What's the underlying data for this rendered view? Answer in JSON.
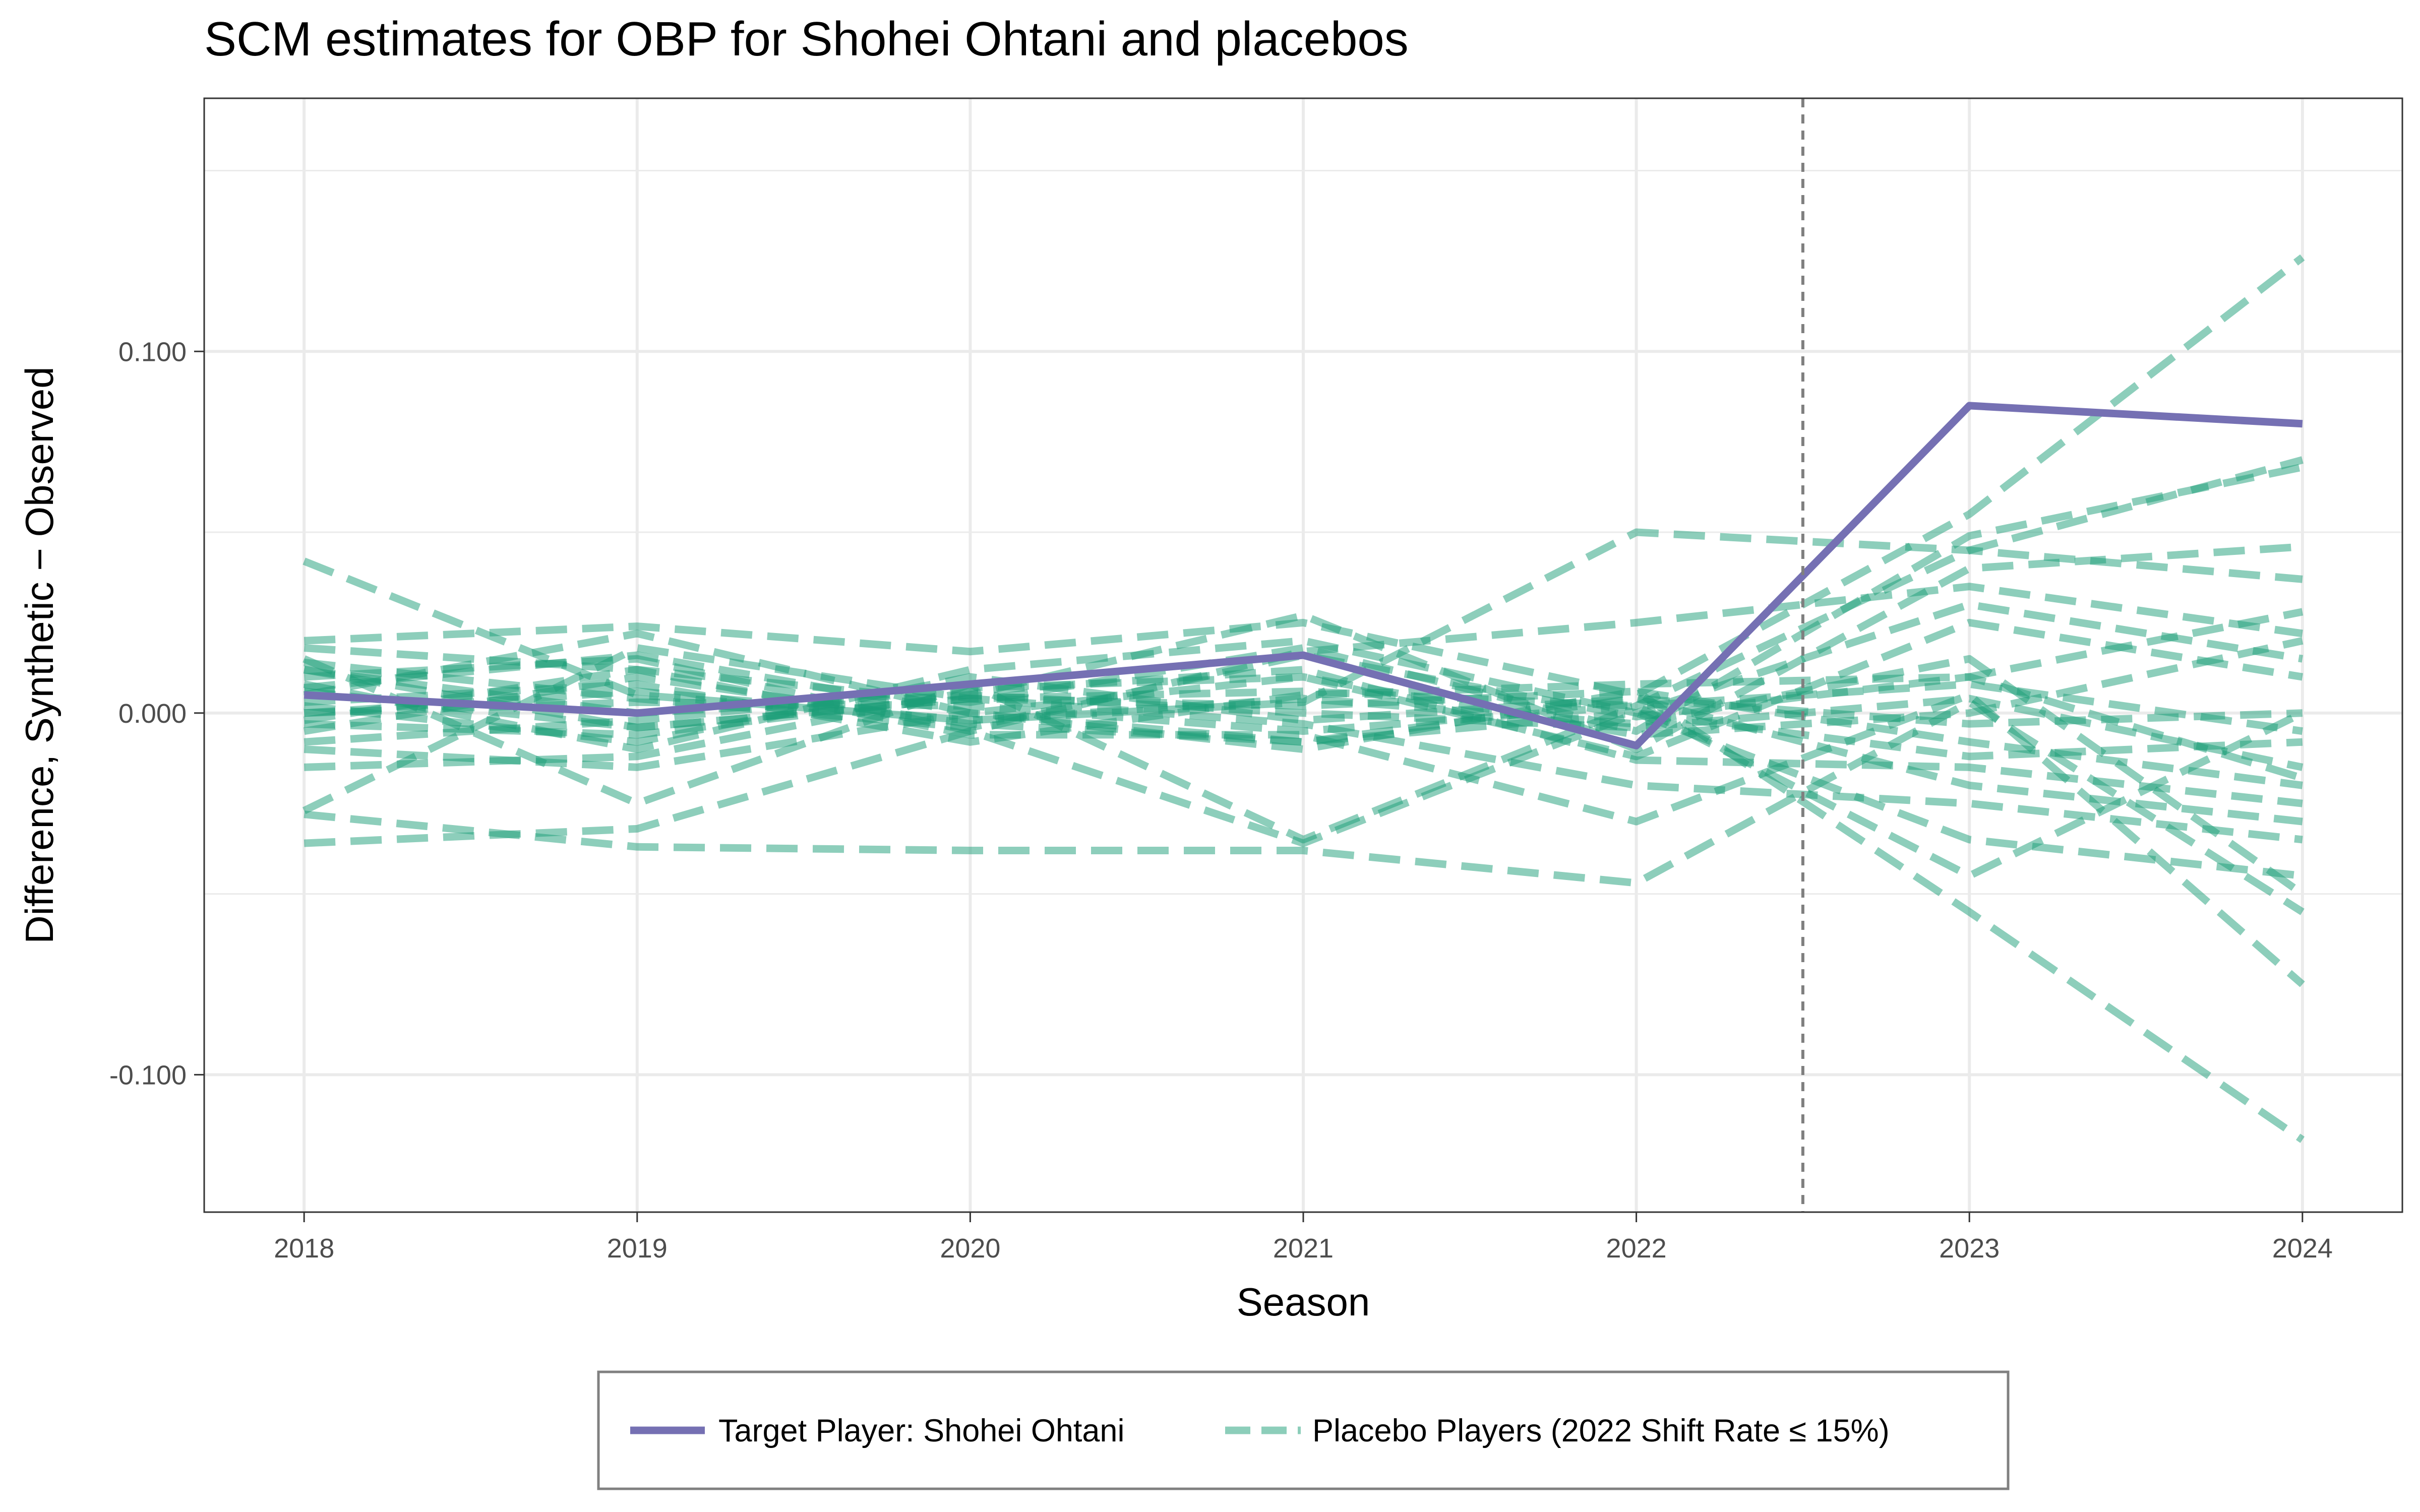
{
  "chart_data": {
    "type": "line",
    "title": "SCM estimates for OBP for Shohei Ohtani and placebos",
    "xlabel": "Season",
    "ylabel": "Difference, Synthetic − Observed",
    "x": [
      2018,
      2019,
      2020,
      2021,
      2022,
      2023,
      2024
    ],
    "x_tick_labels": [
      "2018",
      "2019",
      "2020",
      "2021",
      "2022",
      "2023",
      "2024"
    ],
    "xlim": [
      2017.7,
      2024.3
    ],
    "y_ticks": [
      -0.1,
      0.0,
      0.1
    ],
    "y_tick_labels": [
      "-0.100",
      "0.000",
      "0.100"
    ],
    "ylim": [
      -0.138,
      0.17
    ],
    "grid": true,
    "vline": {
      "x": 2022.5,
      "style": "dashed"
    },
    "legend": {
      "placement": "bottom",
      "entries": [
        {
          "label": "Target Player: Shohei Ohtani",
          "color": "#7570b3",
          "style": "solid"
        },
        {
          "label": "Placebo Players (2022 Shift Rate ≤ 15%)",
          "color": "#1b9e77",
          "style": "dashed"
        }
      ]
    },
    "target_series": {
      "name": "Target Player: Shohei Ohtani",
      "color": "#7570b3",
      "values": [
        0.005,
        0.0,
        0.008,
        0.016,
        -0.009,
        0.085,
        0.08
      ]
    },
    "placebo_color": "#1b9e77",
    "placebo_series": [
      {
        "values": [
          0.042,
          0.005,
          -0.002,
          0.003,
          0.05,
          0.045,
          0.037
        ]
      },
      {
        "values": [
          0.02,
          0.024,
          0.017,
          0.025,
          0.005,
          0.055,
          0.126
        ]
      },
      {
        "values": [
          0.018,
          0.012,
          0.003,
          0.018,
          -0.005,
          0.049,
          0.068
        ]
      },
      {
        "values": [
          0.015,
          -0.025,
          0.008,
          -0.035,
          0.002,
          0.045,
          0.07
        ]
      },
      {
        "values": [
          0.012,
          0.0,
          0.005,
          0.027,
          -0.01,
          0.04,
          0.046
        ]
      },
      {
        "values": [
          0.01,
          0.015,
          -0.005,
          0.017,
          0.025,
          0.035,
          0.022
        ]
      },
      {
        "values": [
          0.008,
          -0.01,
          0.012,
          0.02,
          0.0,
          0.03,
          0.015
        ]
      },
      {
        "values": [
          0.005,
          0.022,
          0.0,
          0.01,
          -0.012,
          0.025,
          0.01
        ]
      },
      {
        "values": [
          0.003,
          0.008,
          -0.008,
          0.005,
          0.008,
          0.01,
          0.028
        ]
      },
      {
        "values": [
          0.0,
          0.003,
          0.002,
          -0.005,
          0.002,
          0.008,
          -0.005
        ]
      },
      {
        "values": [
          -0.003,
          -0.006,
          0.005,
          0.0,
          -0.004,
          0.004,
          -0.015
        ]
      },
      {
        "values": [
          -0.005,
          0.01,
          -0.003,
          -0.008,
          0.004,
          -0.003,
          0.0
        ]
      },
      {
        "values": [
          -0.01,
          -0.015,
          0.0,
          -0.01,
          0.006,
          -0.008,
          -0.02
        ]
      },
      {
        "values": [
          -0.015,
          -0.012,
          0.006,
          0.012,
          -0.013,
          -0.015,
          -0.025
        ]
      },
      {
        "values": [
          -0.027,
          0.018,
          0.004,
          -0.003,
          -0.02,
          -0.025,
          -0.035
        ]
      },
      {
        "values": [
          -0.036,
          -0.032,
          -0.005,
          -0.036,
          0.0,
          -0.035,
          -0.045
        ]
      },
      {
        "values": [
          -0.028,
          -0.037,
          -0.038,
          -0.038,
          -0.047,
          0.003,
          -0.055
        ]
      },
      {
        "values": [
          0.006,
          -0.004,
          0.004,
          0.002,
          0.006,
          -0.055,
          -0.118
        ]
      },
      {
        "values": [
          -0.002,
          0.012,
          -0.006,
          -0.006,
          -0.03,
          0.005,
          -0.075
        ]
      },
      {
        "values": [
          0.012,
          -0.004,
          0.004,
          0.006,
          0.002,
          -0.045,
          0.0
        ]
      },
      {
        "values": [
          0.0,
          0.006,
          -0.002,
          0.004,
          -0.003,
          0.015,
          -0.05
        ]
      },
      {
        "values": [
          0.007,
          0.016,
          0.0,
          -0.008,
          0.0,
          -0.012,
          -0.008
        ]
      },
      {
        "values": [
          -0.008,
          -0.002,
          0.007,
          0.01,
          -0.006,
          0.0,
          0.02
        ]
      },
      {
        "values": [
          0.002,
          -0.008,
          0.01,
          -0.002,
          0.004,
          -0.02,
          -0.03
        ]
      },
      {
        "values": [
          0.014,
          0.004,
          -0.004,
          0.016,
          -0.001,
          0.01,
          -0.018
        ]
      }
    ]
  }
}
